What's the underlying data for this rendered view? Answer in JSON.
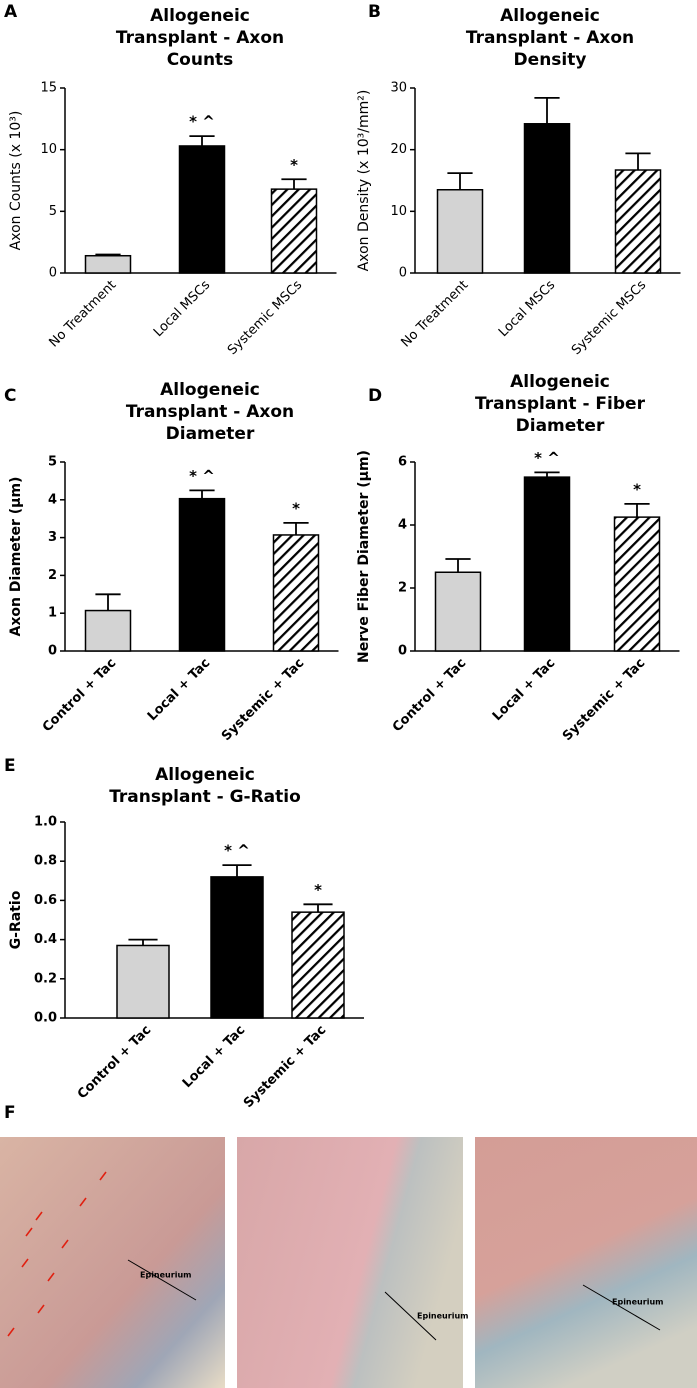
{
  "chart_data": [
    {
      "type": "bar",
      "panel": "A",
      "title": [
        "Allogeneic",
        "Transplant - Axon",
        "Counts"
      ],
      "ylabel": "Axon Counts (x 10³)",
      "categories": [
        "No Treatment",
        "Local MSCs",
        "Systemic MSCs"
      ],
      "values": [
        1.4,
        10.3,
        6.8
      ],
      "errors": [
        0.1,
        0.8,
        0.8
      ],
      "annotations": [
        null,
        "* ^",
        "*"
      ],
      "colors": [
        "#d3d3d3",
        "#000000",
        "#ffffff"
      ],
      "hatch": [
        false,
        false,
        true
      ],
      "ylim": [
        0,
        15
      ],
      "yticks": [
        0,
        5,
        10,
        15
      ],
      "bold_labels": false
    },
    {
      "type": "bar",
      "panel": "B",
      "title": [
        "Allogeneic",
        "Transplant - Axon",
        "Density"
      ],
      "ylabel": "Axon Density (x 10³/mm²)",
      "categories": [
        "No Treatment",
        "Local MSCs",
        "Systemic MSCs"
      ],
      "values": [
        13.5,
        24.2,
        16.7
      ],
      "errors": [
        2.7,
        4.2,
        2.7
      ],
      "colors": [
        "#d3d3d3",
        "#000000",
        "#ffffff"
      ],
      "hatch": [
        false,
        false,
        true
      ],
      "ylim": [
        0,
        30
      ],
      "yticks": [
        0,
        10,
        20,
        30
      ],
      "bold_labels": false
    },
    {
      "type": "bar",
      "panel": "C",
      "title": [
        "Allogeneic",
        "Transplant -  Axon",
        "Diameter"
      ],
      "ylabel": "Axon Diameter (μm)",
      "categories": [
        "Control + Tac",
        "Local + Tac",
        "Systemic + Tac"
      ],
      "values": [
        1.07,
        4.03,
        3.07
      ],
      "errors": [
        0.43,
        0.22,
        0.32
      ],
      "annotations": [
        null,
        "* ^",
        "*"
      ],
      "colors": [
        "#d3d3d3",
        "#000000",
        "#ffffff"
      ],
      "hatch": [
        false,
        false,
        true
      ],
      "ylim": [
        0,
        5
      ],
      "yticks": [
        0,
        1,
        2,
        3,
        4,
        5
      ],
      "bold_labels": true
    },
    {
      "type": "bar",
      "panel": "D",
      "title": [
        "Allogeneic",
        "Transplant - Fiber",
        "Diameter"
      ],
      "ylabel": "Nerve Fiber Diameter (μm)",
      "categories": [
        "Control + Tac",
        "Local + Tac",
        "Systemic + Tac"
      ],
      "values": [
        2.5,
        5.52,
        4.25
      ],
      "errors": [
        0.42,
        0.15,
        0.42
      ],
      "annotations": [
        null,
        "* ^",
        "*"
      ],
      "colors": [
        "#d3d3d3",
        "#000000",
        "#ffffff"
      ],
      "hatch": [
        false,
        false,
        true
      ],
      "ylim": [
        0,
        6
      ],
      "yticks": [
        0,
        2,
        4,
        6
      ],
      "bold_labels": true
    },
    {
      "type": "bar",
      "panel": "E",
      "title": [
        "Allogeneic",
        "Transplant - G-Ratio"
      ],
      "ylabel": "G-Ratio",
      "categories": [
        "Control + Tac",
        "Local + Tac",
        "Systemic + Tac"
      ],
      "values": [
        0.37,
        0.72,
        0.54
      ],
      "errors": [
        0.03,
        0.06,
        0.04
      ],
      "annotations": [
        null,
        "* ^",
        "*"
      ],
      "colors": [
        "#d3d3d3",
        "#000000",
        "#ffffff"
      ],
      "hatch": [
        false,
        false,
        true
      ],
      "ylim": [
        0,
        1
      ],
      "yticks": [
        {
          "value": 0,
          "label": "0.0"
        },
        0.2,
        0.4,
        0.6,
        0.8,
        {
          "value": 1,
          "label": "1.0"
        }
      ],
      "bold_labels": true
    }
  ],
  "panel_f": {
    "label": "F",
    "images": [
      {
        "label": "Epineurium"
      },
      {
        "label": "Epineurium"
      },
      {
        "label": "Epineurium"
      }
    ]
  }
}
